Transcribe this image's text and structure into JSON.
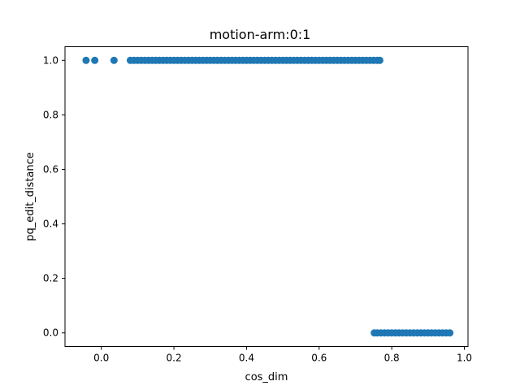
{
  "chart_data": {
    "type": "scatter",
    "title": "motion-arm:0:1",
    "xlabel": "cos_dim",
    "ylabel": "pq_edit_distance",
    "xlim": [
      -0.1,
      1.01
    ],
    "ylim": [
      -0.05,
      1.05
    ],
    "x_ticks": [
      0.0,
      0.2,
      0.4,
      0.6,
      0.8,
      1.0
    ],
    "x_tick_labels": [
      "0.0",
      "0.2",
      "0.4",
      "0.6",
      "0.8",
      "1.0"
    ],
    "y_ticks": [
      0.0,
      0.2,
      0.4,
      0.6,
      0.8,
      1.0
    ],
    "y_tick_labels": [
      "0.0",
      "0.2",
      "0.4",
      "0.6",
      "0.8",
      "1.0"
    ],
    "grid": false,
    "marker_color": "#1f77b4",
    "series": [
      {
        "values": [
          {
            "x": -0.042,
            "y": 1.0
          },
          {
            "x": -0.018,
            "y": 1.0
          },
          {
            "x": 0.035,
            "y": 1.0
          },
          {
            "x": 0.08,
            "y": 1.0
          },
          {
            "x": 0.09,
            "y": 1.0
          },
          {
            "x": 0.1,
            "y": 1.0
          },
          {
            "x": 0.11,
            "y": 1.0
          },
          {
            "x": 0.12,
            "y": 1.0
          },
          {
            "x": 0.13,
            "y": 1.0
          },
          {
            "x": 0.14,
            "y": 1.0
          },
          {
            "x": 0.15,
            "y": 1.0
          },
          {
            "x": 0.16,
            "y": 1.0
          },
          {
            "x": 0.17,
            "y": 1.0
          },
          {
            "x": 0.18,
            "y": 1.0
          },
          {
            "x": 0.19,
            "y": 1.0
          },
          {
            "x": 0.2,
            "y": 1.0
          },
          {
            "x": 0.21,
            "y": 1.0
          },
          {
            "x": 0.22,
            "y": 1.0
          },
          {
            "x": 0.23,
            "y": 1.0
          },
          {
            "x": 0.24,
            "y": 1.0
          },
          {
            "x": 0.25,
            "y": 1.0
          },
          {
            "x": 0.26,
            "y": 1.0
          },
          {
            "x": 0.27,
            "y": 1.0
          },
          {
            "x": 0.28,
            "y": 1.0
          },
          {
            "x": 0.29,
            "y": 1.0
          },
          {
            "x": 0.3,
            "y": 1.0
          },
          {
            "x": 0.31,
            "y": 1.0
          },
          {
            "x": 0.32,
            "y": 1.0
          },
          {
            "x": 0.33,
            "y": 1.0
          },
          {
            "x": 0.34,
            "y": 1.0
          },
          {
            "x": 0.35,
            "y": 1.0
          },
          {
            "x": 0.36,
            "y": 1.0
          },
          {
            "x": 0.37,
            "y": 1.0
          },
          {
            "x": 0.38,
            "y": 1.0
          },
          {
            "x": 0.39,
            "y": 1.0
          },
          {
            "x": 0.4,
            "y": 1.0
          },
          {
            "x": 0.41,
            "y": 1.0
          },
          {
            "x": 0.42,
            "y": 1.0
          },
          {
            "x": 0.43,
            "y": 1.0
          },
          {
            "x": 0.44,
            "y": 1.0
          },
          {
            "x": 0.45,
            "y": 1.0
          },
          {
            "x": 0.46,
            "y": 1.0
          },
          {
            "x": 0.47,
            "y": 1.0
          },
          {
            "x": 0.48,
            "y": 1.0
          },
          {
            "x": 0.49,
            "y": 1.0
          },
          {
            "x": 0.5,
            "y": 1.0
          },
          {
            "x": 0.51,
            "y": 1.0
          },
          {
            "x": 0.52,
            "y": 1.0
          },
          {
            "x": 0.53,
            "y": 1.0
          },
          {
            "x": 0.54,
            "y": 1.0
          },
          {
            "x": 0.55,
            "y": 1.0
          },
          {
            "x": 0.56,
            "y": 1.0
          },
          {
            "x": 0.57,
            "y": 1.0
          },
          {
            "x": 0.58,
            "y": 1.0
          },
          {
            "x": 0.59,
            "y": 1.0
          },
          {
            "x": 0.6,
            "y": 1.0
          },
          {
            "x": 0.61,
            "y": 1.0
          },
          {
            "x": 0.62,
            "y": 1.0
          },
          {
            "x": 0.63,
            "y": 1.0
          },
          {
            "x": 0.64,
            "y": 1.0
          },
          {
            "x": 0.65,
            "y": 1.0
          },
          {
            "x": 0.66,
            "y": 1.0
          },
          {
            "x": 0.67,
            "y": 1.0
          },
          {
            "x": 0.68,
            "y": 1.0
          },
          {
            "x": 0.69,
            "y": 1.0
          },
          {
            "x": 0.7,
            "y": 1.0
          },
          {
            "x": 0.71,
            "y": 1.0
          },
          {
            "x": 0.72,
            "y": 1.0
          },
          {
            "x": 0.73,
            "y": 1.0
          },
          {
            "x": 0.74,
            "y": 1.0
          },
          {
            "x": 0.75,
            "y": 1.0
          },
          {
            "x": 0.76,
            "y": 1.0
          },
          {
            "x": 0.767,
            "y": 1.0
          },
          {
            "x": 0.752,
            "y": 0.0
          },
          {
            "x": 0.76,
            "y": 0.0
          },
          {
            "x": 0.77,
            "y": 0.0
          },
          {
            "x": 0.78,
            "y": 0.0
          },
          {
            "x": 0.79,
            "y": 0.0
          },
          {
            "x": 0.8,
            "y": 0.0
          },
          {
            "x": 0.81,
            "y": 0.0
          },
          {
            "x": 0.82,
            "y": 0.0
          },
          {
            "x": 0.83,
            "y": 0.0
          },
          {
            "x": 0.84,
            "y": 0.0
          },
          {
            "x": 0.85,
            "y": 0.0
          },
          {
            "x": 0.86,
            "y": 0.0
          },
          {
            "x": 0.87,
            "y": 0.0
          },
          {
            "x": 0.88,
            "y": 0.0
          },
          {
            "x": 0.89,
            "y": 0.0
          },
          {
            "x": 0.9,
            "y": 0.0
          },
          {
            "x": 0.91,
            "y": 0.0
          },
          {
            "x": 0.92,
            "y": 0.0
          },
          {
            "x": 0.93,
            "y": 0.0
          },
          {
            "x": 0.94,
            "y": 0.0
          },
          {
            "x": 0.95,
            "y": 0.0
          },
          {
            "x": 0.96,
            "y": 0.0
          }
        ]
      }
    ]
  }
}
